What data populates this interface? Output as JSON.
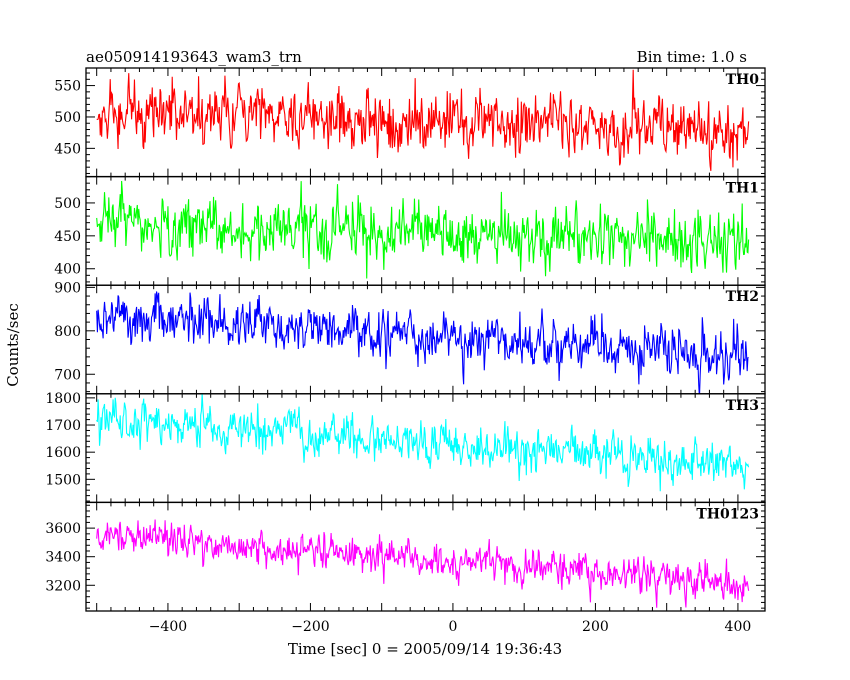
{
  "header": {
    "title": "ae050914193643_wam3_trn",
    "bin_time": "Bin time: 1.0 s"
  },
  "chart_data": {
    "type": "line",
    "title": "ae050914193643_wam3_trn",
    "subtitle": "Bin time: 1.0 s",
    "xlabel": "Time [sec] 0 = 2005/09/14 19:36:43",
    "ylabel": "Counts/sec",
    "xlim": [
      -515,
      438
    ],
    "x_ticks": [
      -400,
      -200,
      0,
      200,
      400
    ],
    "x_tick_labels": [
      "−400",
      "−200",
      "0",
      "200",
      "400"
    ],
    "x_range": [
      -500,
      415
    ],
    "bin_seconds": 1,
    "grid": false,
    "legend": "none",
    "panels": [
      {
        "name": "TH0",
        "color": "#ff0000",
        "ylim": [
          405,
          578
        ],
        "y_ticks": [
          450,
          500,
          550
        ],
        "y_tick_labels": [
          "450",
          "500",
          "550"
        ],
        "trend_start": 510,
        "trend_end": 475,
        "noise_sd": 24
      },
      {
        "name": "TH1",
        "color": "#00ff00",
        "ylim": [
          375,
          540
        ],
        "y_ticks": [
          400,
          450,
          500
        ],
        "y_tick_labels": [
          "400",
          "450",
          "500"
        ],
        "trend_start": 470,
        "trend_end": 440,
        "noise_sd": 22
      },
      {
        "name": "TH2",
        "color": "#0000ff",
        "ylim": [
          655,
          905
        ],
        "y_ticks": [
          700,
          800,
          900
        ],
        "y_tick_labels": [
          "700",
          "800",
          "900"
        ],
        "trend_start": 840,
        "trend_end": 740,
        "noise_sd": 28
      },
      {
        "name": "TH3",
        "color": "#00ffff",
        "ylim": [
          1415,
          1815
        ],
        "y_ticks": [
          1500,
          1600,
          1700,
          1800
        ],
        "y_tick_labels": [
          "1500",
          "1600",
          "1700",
          "1800"
        ],
        "trend_start": 1720,
        "trend_end": 1555,
        "noise_sd": 40
      },
      {
        "name": "TH0123",
        "color": "#ff00ff",
        "ylim": [
          3020,
          3780
        ],
        "y_ticks": [
          3200,
          3400,
          3600
        ],
        "y_tick_labels": [
          "3200",
          "3400",
          "3600"
        ],
        "trend_start": 3560,
        "trend_end": 3200,
        "noise_sd": 60
      }
    ]
  }
}
